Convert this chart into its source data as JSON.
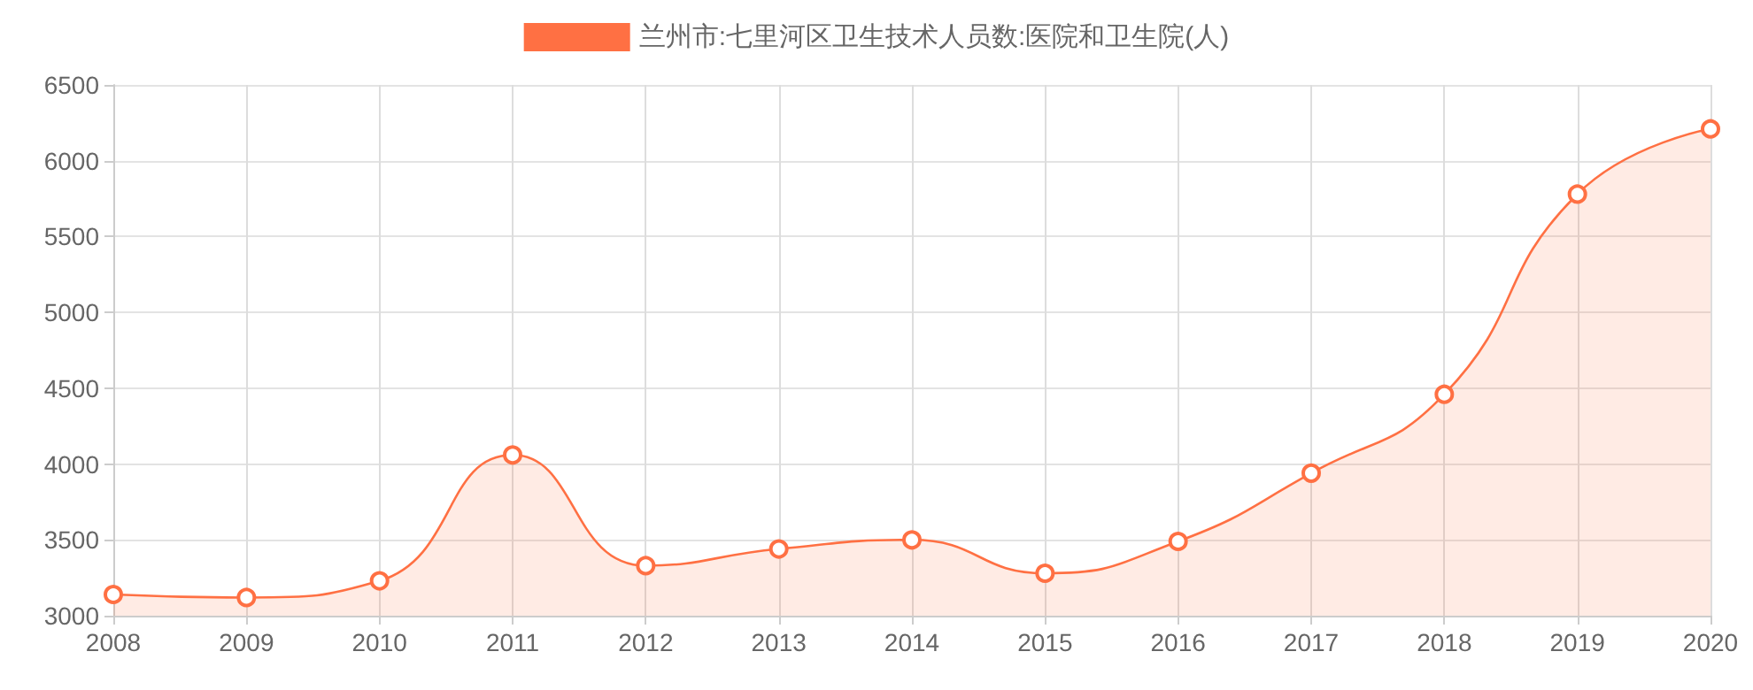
{
  "chart_data": {
    "type": "area",
    "categories": [
      "2008",
      "2009",
      "2010",
      "2011",
      "2012",
      "2013",
      "2014",
      "2015",
      "2016",
      "2017",
      "2018",
      "2019",
      "2020"
    ],
    "series": [
      {
        "name": "兰州市:七里河区卫生技术人员数:医院和卫生院(人)",
        "color": "#ff7043",
        "values": [
          3140,
          3120,
          3230,
          4060,
          3330,
          3440,
          3500,
          3280,
          3490,
          3940,
          4460,
          5780,
          6210
        ]
      }
    ],
    "ylim": [
      3000,
      6500
    ],
    "yticks": [
      3000,
      3500,
      4000,
      4500,
      5000,
      5500,
      6000,
      6500
    ],
    "grid": true,
    "legend": "top",
    "marker": "circle",
    "line_style": "solid"
  }
}
